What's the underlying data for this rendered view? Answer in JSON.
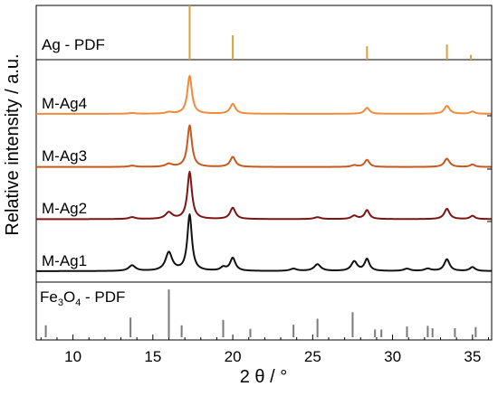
{
  "chart_data": {
    "type": "line",
    "xlabel": "2 θ / °",
    "ylabel": "Relative intensity / a.u.",
    "xlim": [
      7.7,
      36.2
    ],
    "xticks": [
      10,
      15,
      20,
      25,
      30,
      35
    ],
    "grid": false,
    "legend": "none",
    "series_labels_placement": "left, above each trace",
    "top_reference": {
      "name": "Ag - PDF",
      "color": "#d9a23a",
      "lines": [
        {
          "x": 17.3,
          "intensity": 1.0
        },
        {
          "x": 20.0,
          "intensity": 0.45
        },
        {
          "x": 28.4,
          "intensity": 0.25
        },
        {
          "x": 33.4,
          "intensity": 0.28
        },
        {
          "x": 34.9,
          "intensity": 0.09
        }
      ]
    },
    "bottom_reference": {
      "name_main": "Fe",
      "name_sub1": "3",
      "name_mid": "O",
      "name_sub2": "4",
      "name_tail": " - PDF",
      "color": "#7a7a7a",
      "lines": [
        {
          "x": 8.3,
          "intensity": 0.2
        },
        {
          "x": 13.6,
          "intensity": 0.33
        },
        {
          "x": 16.0,
          "intensity": 0.8
        },
        {
          "x": 16.8,
          "intensity": 0.2
        },
        {
          "x": 19.4,
          "intensity": 0.29
        },
        {
          "x": 21.1,
          "intensity": 0.14
        },
        {
          "x": 23.8,
          "intensity": 0.21
        },
        {
          "x": 25.3,
          "intensity": 0.31
        },
        {
          "x": 27.5,
          "intensity": 0.42
        },
        {
          "x": 28.9,
          "intensity": 0.13
        },
        {
          "x": 29.3,
          "intensity": 0.13
        },
        {
          "x": 30.9,
          "intensity": 0.18
        },
        {
          "x": 32.2,
          "intensity": 0.19
        },
        {
          "x": 32.5,
          "intensity": 0.15
        },
        {
          "x": 33.9,
          "intensity": 0.15
        },
        {
          "x": 35.2,
          "intensity": 0.17
        }
      ]
    },
    "series": [
      {
        "name": "M-Ag4",
        "color": "#f08a3c",
        "baseline": 0.05,
        "peaks": [
          {
            "x": 17.3,
            "height": 1.0,
            "width": 0.17
          },
          {
            "x": 20.0,
            "height": 0.26,
            "width": 0.2
          },
          {
            "x": 28.4,
            "height": 0.16,
            "width": 0.18
          },
          {
            "x": 33.4,
            "height": 0.21,
            "width": 0.2
          },
          {
            "x": 35.0,
            "height": 0.06,
            "width": 0.18
          },
          {
            "x": 16.0,
            "height": 0.04,
            "width": 0.25
          },
          {
            "x": 13.7,
            "height": 0.02,
            "width": 0.25
          }
        ]
      },
      {
        "name": "M-Ag3",
        "color": "#c7581f",
        "baseline": 0.05,
        "peaks": [
          {
            "x": 17.3,
            "height": 1.0,
            "width": 0.17
          },
          {
            "x": 20.0,
            "height": 0.24,
            "width": 0.2
          },
          {
            "x": 28.4,
            "height": 0.17,
            "width": 0.18
          },
          {
            "x": 33.4,
            "height": 0.2,
            "width": 0.2
          },
          {
            "x": 35.0,
            "height": 0.06,
            "width": 0.18
          },
          {
            "x": 16.0,
            "height": 0.07,
            "width": 0.25
          },
          {
            "x": 13.7,
            "height": 0.03,
            "width": 0.25
          },
          {
            "x": 27.6,
            "height": 0.04,
            "width": 0.22
          }
        ]
      },
      {
        "name": "M-Ag2",
        "color": "#7a1512",
        "baseline": 0.05,
        "peaks": [
          {
            "x": 17.3,
            "height": 1.0,
            "width": 0.17
          },
          {
            "x": 20.0,
            "height": 0.24,
            "width": 0.2
          },
          {
            "x": 28.4,
            "height": 0.19,
            "width": 0.18
          },
          {
            "x": 33.4,
            "height": 0.22,
            "width": 0.2
          },
          {
            "x": 35.0,
            "height": 0.07,
            "width": 0.18
          },
          {
            "x": 16.0,
            "height": 0.14,
            "width": 0.25
          },
          {
            "x": 13.7,
            "height": 0.04,
            "width": 0.25
          },
          {
            "x": 27.6,
            "height": 0.07,
            "width": 0.22
          },
          {
            "x": 25.3,
            "height": 0.04,
            "width": 0.25
          }
        ]
      },
      {
        "name": "M-Ag1",
        "color": "#111111",
        "baseline": 0.05,
        "peaks": [
          {
            "x": 17.3,
            "height": 1.0,
            "width": 0.17
          },
          {
            "x": 16.0,
            "height": 0.33,
            "width": 0.25
          },
          {
            "x": 13.7,
            "height": 0.1,
            "width": 0.25
          },
          {
            "x": 20.0,
            "height": 0.23,
            "width": 0.2
          },
          {
            "x": 19.4,
            "height": 0.06,
            "width": 0.2
          },
          {
            "x": 23.8,
            "height": 0.04,
            "width": 0.25
          },
          {
            "x": 25.3,
            "height": 0.12,
            "width": 0.25
          },
          {
            "x": 27.6,
            "height": 0.17,
            "width": 0.22
          },
          {
            "x": 28.4,
            "height": 0.21,
            "width": 0.18
          },
          {
            "x": 30.9,
            "height": 0.04,
            "width": 0.25
          },
          {
            "x": 32.2,
            "height": 0.04,
            "width": 0.25
          },
          {
            "x": 33.4,
            "height": 0.21,
            "width": 0.2
          },
          {
            "x": 35.0,
            "height": 0.07,
            "width": 0.2
          }
        ]
      }
    ]
  }
}
